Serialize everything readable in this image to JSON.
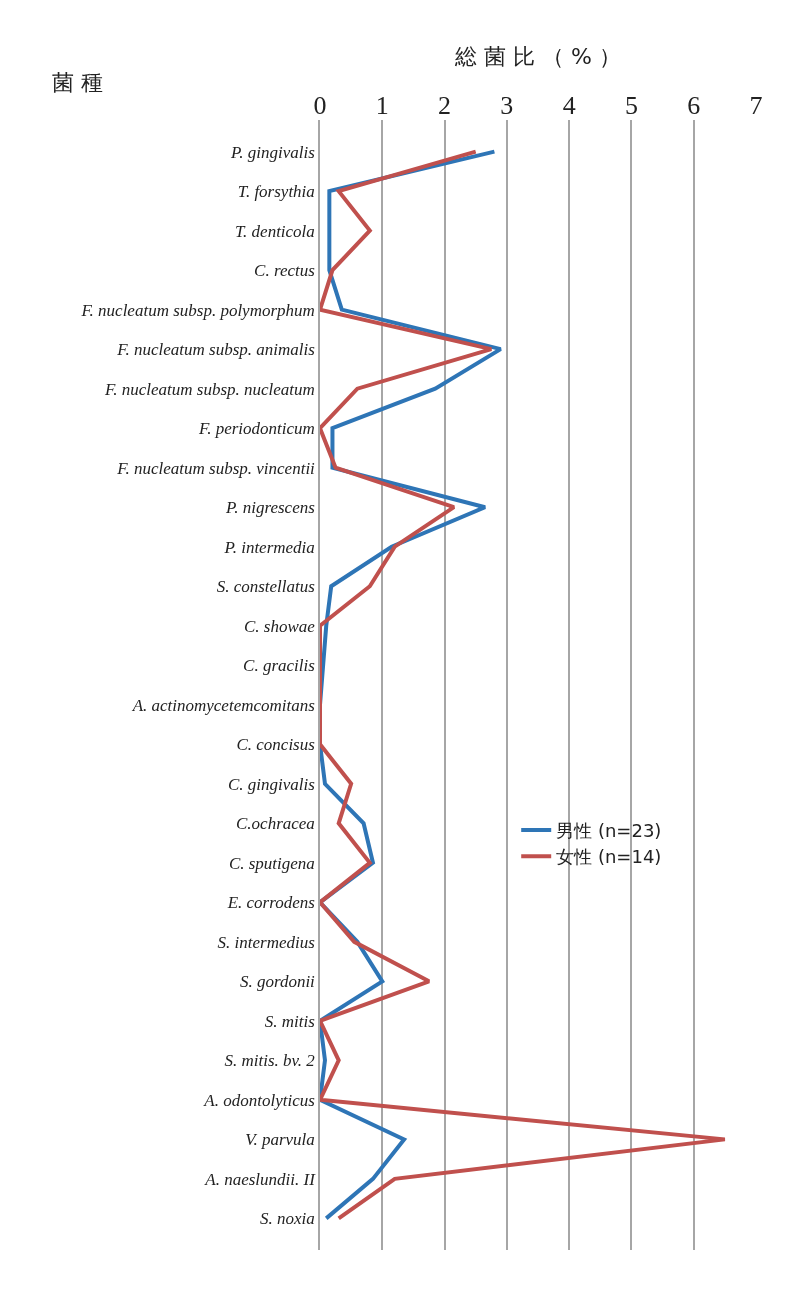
{
  "chart_data": {
    "type": "line",
    "orientation": "horizontal",
    "xlabel": "総 菌 比 （ % ）",
    "ylabel": "菌 種",
    "categories": [
      "P. gingivalis",
      "T. forsythia",
      "T. denticola",
      "C. rectus",
      "F. nucleatum subsp. polymorphum",
      "F. nucleatum subsp. animalis",
      "F. nucleatum subsp. nucleatum",
      "F. periodonticum",
      "F. nucleatum subsp. vincentii",
      "P. nigrescens",
      "P. intermedia",
      "S. constellatus",
      "C. showae",
      "C. gracilis",
      "A. actinomycetemcomitans",
      "C. concisus",
      "C. gingivalis",
      "C.ochracea",
      "C. sputigena",
      "E. corrodens",
      "S. intermedius",
      "S. gordonii",
      "S. mitis",
      "S. mitis. bv. 2",
      "A. odontolyticus",
      "V. parvula",
      "A. naeslundii. II",
      "S. noxia"
    ],
    "series": [
      {
        "name": "男性 (n=23)",
        "color": "#2e75b6",
        "values": [
          2.8,
          0.15,
          0.15,
          0.15,
          0.35,
          2.9,
          1.85,
          0.2,
          0.2,
          2.65,
          1.15,
          0.18,
          0.1,
          0.05,
          0,
          0,
          0.08,
          0.7,
          0.85,
          0,
          0.6,
          1.0,
          0,
          0.08,
          0,
          1.35,
          0.85,
          0.1
        ]
      },
      {
        "name": "女性 (n=14)",
        "color": "#c0504d",
        "values": [
          2.5,
          0.3,
          0.8,
          0.2,
          0,
          2.75,
          0.6,
          0,
          0.25,
          2.15,
          1.2,
          0.8,
          0,
          0,
          0,
          0,
          0.5,
          0.3,
          0.8,
          0,
          0.55,
          1.75,
          0,
          0.3,
          0,
          6.5,
          1.2,
          0.3
        ]
      }
    ],
    "xlim": [
      0,
      7
    ],
    "xticks": [
      0,
      1,
      2,
      3,
      4,
      5,
      6,
      7
    ],
    "grid": "x",
    "legend": "right",
    "line_style": "solid",
    "marker": "none"
  }
}
